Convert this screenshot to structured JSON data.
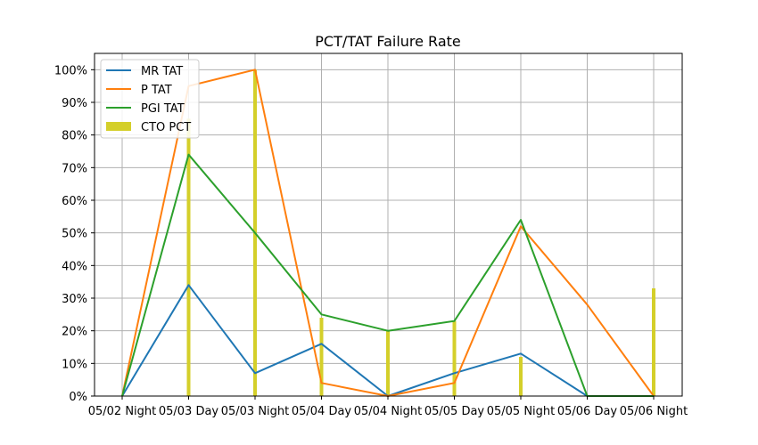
{
  "chart_data": {
    "type": "line",
    "title": "PCT/TAT Failure Rate",
    "xlabel": "",
    "ylabel": "",
    "categories": [
      "05/02 Night",
      "05/03 Day",
      "05/03 Night",
      "05/04 Day",
      "05/04 Night",
      "05/05 Day",
      "05/05 Night",
      "05/06 Day",
      "05/06 Night"
    ],
    "ylim": [
      0,
      1.05
    ],
    "yticks": [
      0,
      0.1,
      0.2,
      0.3,
      0.4,
      0.5,
      0.6,
      0.7,
      0.8,
      0.9,
      1.0
    ],
    "ytick_labels": [
      "0%",
      "10%",
      "20%",
      "30%",
      "40%",
      "50%",
      "60%",
      "70%",
      "80%",
      "90%",
      "100%"
    ],
    "grid": true,
    "legend_position": "top-left",
    "series": [
      {
        "name": "MR TAT",
        "kind": "line",
        "color": "#1f77b4",
        "values": [
          0,
          0.34,
          0.07,
          0.16,
          0,
          0.07,
          0.13,
          0,
          0
        ]
      },
      {
        "name": "P TAT",
        "kind": "line",
        "color": "#ff7f0e",
        "values": [
          0,
          0.95,
          1.0,
          0.04,
          0,
          0.04,
          0.52,
          0.28,
          0
        ]
      },
      {
        "name": "PGI TAT",
        "kind": "line",
        "color": "#2ca02c",
        "values": [
          0,
          0.74,
          0.5,
          0.25,
          0.2,
          0.23,
          0.54,
          0,
          0
        ]
      },
      {
        "name": "CTO PCT",
        "kind": "bar",
        "color": "#d4cf2a",
        "values": [
          0,
          0.85,
          1.0,
          0.24,
          0.2,
          0.23,
          0.12,
          0,
          0.33
        ]
      }
    ]
  }
}
